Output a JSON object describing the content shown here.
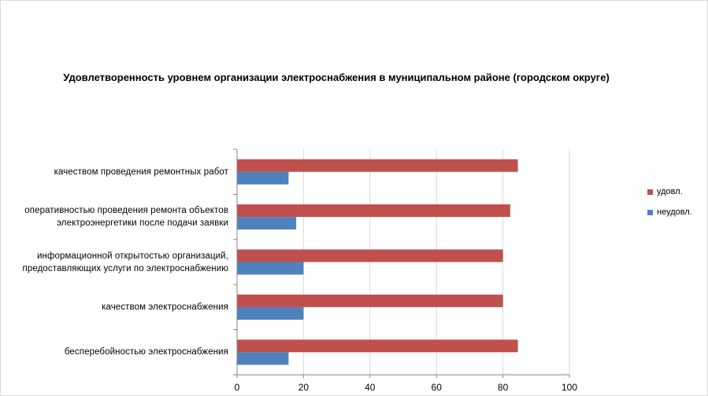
{
  "chart_data": {
    "type": "bar",
    "orientation": "horizontal",
    "title": "Удовлетворенность уровнем организации электроснабжения в муниципальном районе (городском округе)",
    "categories": [
      "качеством проведения ремонтных работ",
      "оперативностью проведения ремонта объектов электроэнергетики после подачи заявки",
      "информационной открытостью организаций, предоставляющих услуги по электроснабжению",
      "качеством электроснабжения",
      "бесперебойностью электроснабжения"
    ],
    "category_lines": [
      [
        "качеством проведения ремонтных работ"
      ],
      [
        "оперативностью проведения ремонта объектов",
        "электроэнергетики после подачи заявки"
      ],
      [
        "информационной открытостью организаций,",
        "предоставляющих услуги по электроснабжению"
      ],
      [
        "качеством электроснабжения"
      ],
      [
        "бесперебойностью электроснабжения"
      ]
    ],
    "series": [
      {
        "name": "удовл.",
        "color": "#c0504d",
        "values": [
          84.5,
          82.2,
          80,
          80,
          84.5
        ]
      },
      {
        "name": "неудовл.",
        "color": "#4f81bd",
        "values": [
          15.5,
          17.8,
          20,
          20,
          15.5
        ]
      }
    ],
    "xlim": [
      0,
      100
    ],
    "xticks": [
      0,
      20,
      40,
      60,
      80,
      100
    ],
    "grid": true,
    "legend_position": "right"
  }
}
